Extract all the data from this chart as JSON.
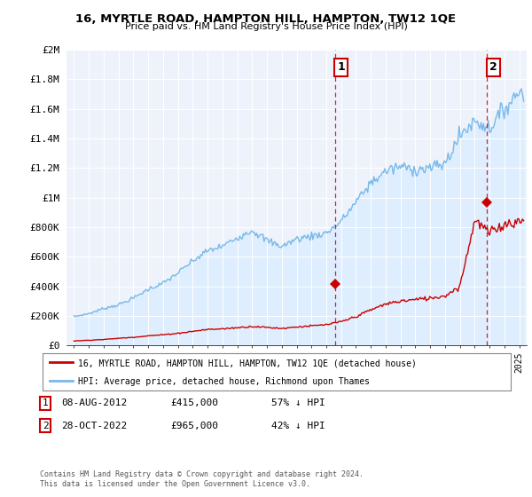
{
  "title": "16, MYRTLE ROAD, HAMPTON HILL, HAMPTON, TW12 1QE",
  "subtitle": "Price paid vs. HM Land Registry's House Price Index (HPI)",
  "ylim": [
    0,
    2000000
  ],
  "yticks": [
    0,
    200000,
    400000,
    600000,
    800000,
    1000000,
    1200000,
    1400000,
    1600000,
    1800000,
    2000000
  ],
  "ytick_labels": [
    "£0",
    "£200K",
    "£400K",
    "£600K",
    "£800K",
    "£1M",
    "£1.2M",
    "£1.4M",
    "£1.6M",
    "£1.8M",
    "£2M"
  ],
  "xlim_start": 1994.5,
  "xlim_end": 2025.5,
  "hpi_color": "#7ab8e8",
  "hpi_fill_color": "#ddeeff",
  "price_color": "#cc0000",
  "vline_color": "#cc0000",
  "point1_x": 2012.6,
  "point1_y": 415000,
  "point2_x": 2022.83,
  "point2_y": 965000,
  "legend_label1": "16, MYRTLE ROAD, HAMPTON HILL, HAMPTON, TW12 1QE (detached house)",
  "legend_label2": "HPI: Average price, detached house, Richmond upon Thames",
  "footer1": "Contains HM Land Registry data © Crown copyright and database right 2024.",
  "footer2": "This data is licensed under the Open Government Licence v3.0.",
  "table_row1": [
    "1",
    "08-AUG-2012",
    "£415,000",
    "57% ↓ HPI"
  ],
  "table_row2": [
    "2",
    "28-OCT-2022",
    "£965,000",
    "42% ↓ HPI"
  ],
  "background_color": "#ffffff",
  "plot_bg_color": "#eef3fb"
}
